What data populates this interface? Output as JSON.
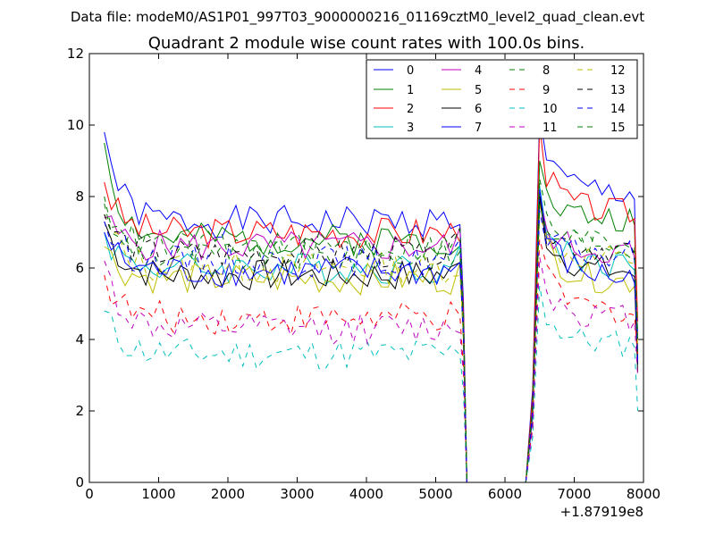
{
  "suptitle": "Data file: modeM0/AS1P01_997T03_9000000216_01169cztM0_level2_quad_clean.evt",
  "chart_data": {
    "type": "line",
    "title": "Quadrant 2 module wise count rates with 100.0s bins.",
    "xlabel": "",
    "ylabel": "",
    "x_offset_label": "+1.87919e8",
    "xlim": [
      0,
      8000
    ],
    "ylim": [
      0,
      12
    ],
    "x_ticks": [
      0,
      1000,
      2000,
      3000,
      4000,
      5000,
      6000,
      7000,
      8000
    ],
    "y_ticks": [
      0,
      2,
      4,
      6,
      8,
      10,
      12
    ],
    "x_tick_labels": [
      "0",
      "1000",
      "2000",
      "3000",
      "4000",
      "5000",
      "6000",
      "7000",
      "8000"
    ],
    "y_tick_labels": [
      "0",
      "2",
      "4",
      "6",
      "8",
      "10",
      "12"
    ],
    "grid": false,
    "legend_position": "top-right",
    "series": [
      {
        "name": "0",
        "color": "#0000ff",
        "dash": "solid",
        "level": 7.3,
        "start": 9.8,
        "peak": 10.3,
        "after": 8.8,
        "end": 3.3,
        "seed": 1
      },
      {
        "name": "1",
        "color": "#008000",
        "dash": "solid",
        "level": 6.8,
        "start": 9.5,
        "peak": 9.0,
        "after": 8.0,
        "end": 3.5,
        "seed": 2
      },
      {
        "name": "2",
        "color": "#ff0000",
        "dash": "solid",
        "level": 7.0,
        "start": 8.4,
        "peak": 10.0,
        "after": 8.2,
        "end": 4.5,
        "seed": 3
      },
      {
        "name": "3",
        "color": "#00bfbf",
        "dash": "solid",
        "level": 6.0,
        "start": 7.0,
        "peak": 8.3,
        "after": 6.6,
        "end": 4.2,
        "seed": 4
      },
      {
        "name": "4",
        "color": "#bf00bf",
        "dash": "solid",
        "level": 6.6,
        "start": 7.4,
        "peak": 8.0,
        "after": 7.0,
        "end": 4.0,
        "seed": 5
      },
      {
        "name": "5",
        "color": "#bfbf00",
        "dash": "solid",
        "level": 5.7,
        "start": 6.6,
        "peak": 7.8,
        "after": 6.1,
        "end": 3.8,
        "seed": 6
      },
      {
        "name": "6",
        "color": "#000000",
        "dash": "solid",
        "level": 5.8,
        "start": 7.3,
        "peak": 8.0,
        "after": 6.4,
        "end": 3.1,
        "seed": 7
      },
      {
        "name": "7",
        "color": "#0000ff",
        "dash": "solid",
        "level": 5.9,
        "start": 7.0,
        "peak": 8.2,
        "after": 6.2,
        "end": 4.1,
        "seed": 8
      },
      {
        "name": "8",
        "color": "#008000",
        "dash": "dashed",
        "level": 6.3,
        "start": 8.0,
        "peak": 8.5,
        "after": 7.2,
        "end": 4.2,
        "seed": 9
      },
      {
        "name": "9",
        "color": "#ff0000",
        "dash": "dashed",
        "level": 4.6,
        "start": 5.8,
        "peak": 6.8,
        "after": 5.2,
        "end": 3.6,
        "seed": 10
      },
      {
        "name": "10",
        "color": "#00bfbf",
        "dash": "dashed",
        "level": 3.6,
        "start": 4.8,
        "peak": 5.5,
        "after": 4.2,
        "end": 2.0,
        "seed": 11
      },
      {
        "name": "11",
        "color": "#bf00bf",
        "dash": "dashed",
        "level": 4.3,
        "start": 6.2,
        "peak": 6.3,
        "after": 5.0,
        "end": 3.0,
        "seed": 12
      },
      {
        "name": "12",
        "color": "#bfbf00",
        "dash": "dashed",
        "level": 6.0,
        "start": 7.5,
        "peak": 7.5,
        "after": 6.8,
        "end": 4.0,
        "seed": 13
      },
      {
        "name": "13",
        "color": "#000000",
        "dash": "dashed",
        "level": 6.4,
        "start": 7.5,
        "peak": 8.0,
        "after": 7.1,
        "end": 3.5,
        "seed": 14
      },
      {
        "name": "14",
        "color": "#0000ff",
        "dash": "dashed",
        "level": 6.2,
        "start": 7.3,
        "peak": 7.6,
        "after": 6.9,
        "end": 3.4,
        "seed": 15
      },
      {
        "name": "15",
        "color": "#008000",
        "dash": "dashed",
        "level": 6.6,
        "start": 7.8,
        "peak": 7.8,
        "after": 7.3,
        "end": 4.0,
        "seed": 16
      }
    ],
    "segments": {
      "x_start": 216,
      "bin_width": 100,
      "drop_start_x": 5400,
      "gap_start_x": 5450,
      "gap_end_x": 6300,
      "rise_x": 6500,
      "end_x": 7916
    }
  }
}
